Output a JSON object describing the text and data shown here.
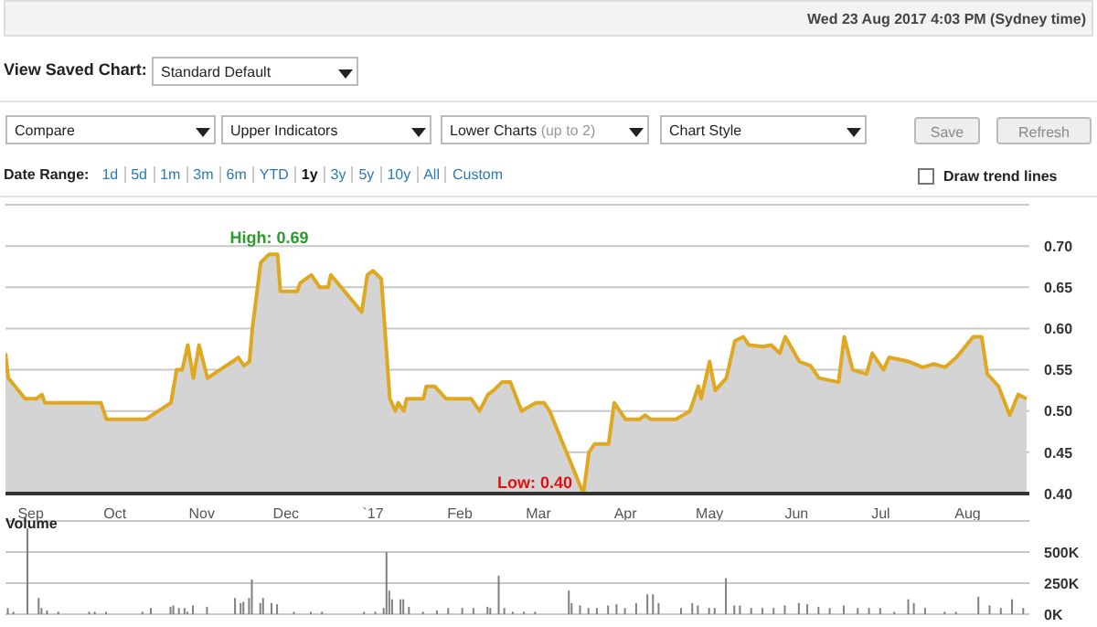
{
  "chart_data": [
    {
      "type": "area",
      "color": "#e0a820",
      "marker": "none",
      "grid": "y",
      "annotations": [
        "Wed 23 Aug 2017 4:03 PM (Sydney time)",
        "View Saved Chart:",
        "Standard Default",
        "Compare",
        "Upper Indicators",
        "Lower Charts",
        "(up to 2)",
        "Chart Style",
        "Save",
        "Refresh",
        "Date Range:",
        "1d",
        "5d",
        "1m",
        "3m",
        "6m",
        "YTD",
        "1y",
        "3y",
        "5y",
        "10y",
        "All",
        "Custom",
        "Draw trend lines",
        {
          "text": "High: 0.69",
          "x": "2016-11-25",
          "y": 0.69
        },
        {
          "text": "Low: 0.40",
          "x": "2017-03-17",
          "y": 0.4
        }
      ],
      "x": [
        "2016-08-23",
        "2016-08-24",
        "2016-08-30",
        "2016-09-03",
        "2016-09-05",
        "2016-09-06",
        "2016-09-26",
        "2016-09-28",
        "2016-10-12",
        "2016-10-21",
        "2016-10-23",
        "2016-10-25",
        "2016-10-27",
        "2016-10-29",
        "2016-10-31",
        "2016-11-03",
        "2016-11-12",
        "2016-11-14",
        "2016-11-16",
        "2016-11-18",
        "2016-11-19",
        "2016-11-22",
        "2016-11-25",
        "2016-11-28",
        "2016-11-29",
        "2016-12-05",
        "2016-12-06",
        "2016-12-10",
        "2016-12-13",
        "2016-12-16",
        "2016-12-17",
        "2016-12-28",
        "2016-12-30",
        "2017-01-01",
        "2017-01-04",
        "2017-01-07",
        "2017-01-09",
        "2017-01-10",
        "2017-01-12",
        "2017-01-13",
        "2017-01-19",
        "2017-01-20",
        "2017-01-23",
        "2017-01-27",
        "2017-02-05",
        "2017-02-08",
        "2017-02-11",
        "2017-02-13",
        "2017-02-16",
        "2017-02-19",
        "2017-02-23",
        "2017-02-28",
        "2017-03-03",
        "2017-03-05",
        "2017-03-17",
        "2017-03-19",
        "2017-03-21",
        "2017-03-26",
        "2017-03-28",
        "2017-04-01",
        "2017-04-06",
        "2017-04-08",
        "2017-04-10",
        "2017-04-19",
        "2017-04-24",
        "2017-04-27",
        "2017-04-28",
        "2017-05-01",
        "2017-05-03",
        "2017-05-07",
        "2017-05-10",
        "2017-05-13",
        "2017-05-15",
        "2017-05-20",
        "2017-05-23",
        "2017-05-26",
        "2017-05-28",
        "2017-06-02",
        "2017-06-06",
        "2017-06-09",
        "2017-06-16",
        "2017-06-18",
        "2017-06-21",
        "2017-06-26",
        "2017-06-28",
        "2017-07-02",
        "2017-07-04",
        "2017-07-11",
        "2017-07-16",
        "2017-07-20",
        "2017-07-24",
        "2017-07-28",
        "2017-08-03",
        "2017-08-06",
        "2017-08-08",
        "2017-08-12",
        "2017-08-16",
        "2017-08-19",
        "2017-08-22"
      ],
      "values": [
        0.57,
        0.54,
        0.515,
        0.515,
        0.52,
        0.51,
        0.51,
        0.49,
        0.49,
        0.51,
        0.55,
        0.55,
        0.58,
        0.54,
        0.58,
        0.54,
        0.56,
        0.565,
        0.555,
        0.56,
        0.6,
        0.68,
        0.69,
        0.69,
        0.645,
        0.645,
        0.655,
        0.665,
        0.65,
        0.65,
        0.665,
        0.62,
        0.665,
        0.67,
        0.66,
        0.515,
        0.5,
        0.51,
        0.5,
        0.515,
        0.515,
        0.53,
        0.53,
        0.515,
        0.515,
        0.5,
        0.52,
        0.525,
        0.535,
        0.535,
        0.5,
        0.51,
        0.51,
        0.5,
        0.4,
        0.45,
        0.46,
        0.46,
        0.51,
        0.49,
        0.49,
        0.495,
        0.49,
        0.49,
        0.5,
        0.53,
        0.515,
        0.56,
        0.525,
        0.54,
        0.585,
        0.59,
        0.58,
        0.578,
        0.58,
        0.57,
        0.59,
        0.56,
        0.555,
        0.54,
        0.535,
        0.59,
        0.55,
        0.545,
        0.57,
        0.55,
        0.565,
        0.56,
        0.553,
        0.557,
        0.553,
        0.565,
        0.59,
        0.59,
        0.545,
        0.53,
        0.495,
        0.52,
        0.515
      ],
      "xlim": [
        "2016-08-23",
        "2017-08-23"
      ],
      "xticks": [
        {
          "value": "2016-09-01",
          "label": "Sep"
        },
        {
          "value": "2016-10-01",
          "label": "Oct"
        },
        {
          "value": "2016-11-01",
          "label": "Nov"
        },
        {
          "value": "2016-12-01",
          "label": "Dec"
        },
        {
          "value": "2017-01-01",
          "label": "`17"
        },
        {
          "value": "2017-02-01",
          "label": "Feb"
        },
        {
          "value": "2017-03-01",
          "label": "Mar"
        },
        {
          "value": "2017-04-01",
          "label": "Apr"
        },
        {
          "value": "2017-05-01",
          "label": "May"
        },
        {
          "value": "2017-06-01",
          "label": "Jun"
        },
        {
          "value": "2017-07-01",
          "label": "Jul"
        },
        {
          "value": "2017-08-01",
          "label": "Aug"
        }
      ],
      "ylim": [
        0.4,
        0.75
      ],
      "yticks": [
        {
          "value": 0.4,
          "label": "0.40"
        },
        {
          "value": 0.45,
          "label": "0.45"
        },
        {
          "value": 0.5,
          "label": "0.50"
        },
        {
          "value": 0.55,
          "label": "0.55"
        },
        {
          "value": 0.6,
          "label": "0.60"
        },
        {
          "value": 0.65,
          "label": "0.65"
        },
        {
          "value": 0.7,
          "label": "0.70"
        }
      ]
    },
    {
      "type": "bar",
      "title": "Volume",
      "color": "#808080",
      "grid": "y",
      "tick_labels": "y",
      "x": [
        "2016-08-24",
        "2016-08-26",
        "2016-08-31",
        "2016-09-04",
        "2016-09-05",
        "2016-09-07",
        "2016-09-11",
        "2016-09-22",
        "2016-09-24",
        "2016-09-28",
        "2016-10-11",
        "2016-10-14",
        "2016-10-21",
        "2016-10-22",
        "2016-10-24",
        "2016-10-26",
        "2016-10-27",
        "2016-10-29",
        "2016-11-03",
        "2016-11-13",
        "2016-11-15",
        "2016-11-16",
        "2016-11-18",
        "2016-11-19",
        "2016-11-22",
        "2016-11-23",
        "2016-11-26",
        "2016-11-28",
        "2016-12-04",
        "2016-12-10",
        "2016-12-14",
        "2016-12-29",
        "2017-01-02",
        "2017-01-05",
        "2017-01-06",
        "2017-01-07",
        "2017-01-08",
        "2017-01-11",
        "2017-01-12",
        "2017-01-14",
        "2017-01-19",
        "2017-01-24",
        "2017-01-28",
        "2017-02-02",
        "2017-02-06",
        "2017-02-11",
        "2017-02-12",
        "2017-02-15",
        "2017-02-17",
        "2017-02-20",
        "2017-02-24",
        "2017-02-28",
        "2017-03-12",
        "2017-03-13",
        "2017-03-16",
        "2017-03-19",
        "2017-03-22",
        "2017-03-26",
        "2017-03-29",
        "2017-04-01",
        "2017-04-05",
        "2017-04-09",
        "2017-04-11",
        "2017-04-13",
        "2017-04-21",
        "2017-04-25",
        "2017-04-27",
        "2017-05-01",
        "2017-05-03",
        "2017-05-07",
        "2017-05-10",
        "2017-05-12",
        "2017-05-16",
        "2017-05-20",
        "2017-05-24",
        "2017-05-28",
        "2017-06-02",
        "2017-06-05",
        "2017-06-09",
        "2017-06-13",
        "2017-06-18",
        "2017-06-23",
        "2017-06-27",
        "2017-07-01",
        "2017-07-06",
        "2017-07-11",
        "2017-07-13",
        "2017-07-17",
        "2017-07-24",
        "2017-07-28",
        "2017-08-05",
        "2017-08-09",
        "2017-08-13",
        "2017-08-17",
        "2017-08-21"
      ],
      "values": [
        50000,
        20000,
        690000,
        130000,
        50000,
        30000,
        20000,
        20000,
        20000,
        20000,
        20000,
        50000,
        60000,
        70000,
        50000,
        50000,
        20000,
        70000,
        60000,
        130000,
        90000,
        100000,
        130000,
        280000,
        90000,
        130000,
        90000,
        80000,
        20000,
        20000,
        20000,
        20000,
        20000,
        50000,
        500000,
        190000,
        120000,
        120000,
        120000,
        60000,
        20000,
        30000,
        50000,
        50000,
        50000,
        60000,
        50000,
        310000,
        50000,
        20000,
        20000,
        20000,
        190000,
        90000,
        70000,
        50000,
        50000,
        70000,
        80000,
        50000,
        90000,
        160000,
        160000,
        90000,
        50000,
        90000,
        70000,
        50000,
        50000,
        290000,
        70000,
        70000,
        50000,
        50000,
        50000,
        70000,
        90000,
        80000,
        60000,
        50000,
        70000,
        50000,
        50000,
        50000,
        20000,
        120000,
        90000,
        50000,
        20000,
        20000,
        140000,
        70000,
        50000,
        120000,
        50000
      ],
      "xlim": [
        "2016-08-23",
        "2017-08-23"
      ],
      "ylim": [
        0,
        750000
      ],
      "yticks": [
        {
          "value": 0,
          "label": "0K"
        },
        {
          "value": 250000,
          "label": "250K"
        },
        {
          "value": 500000,
          "label": "500K"
        }
      ]
    }
  ]
}
